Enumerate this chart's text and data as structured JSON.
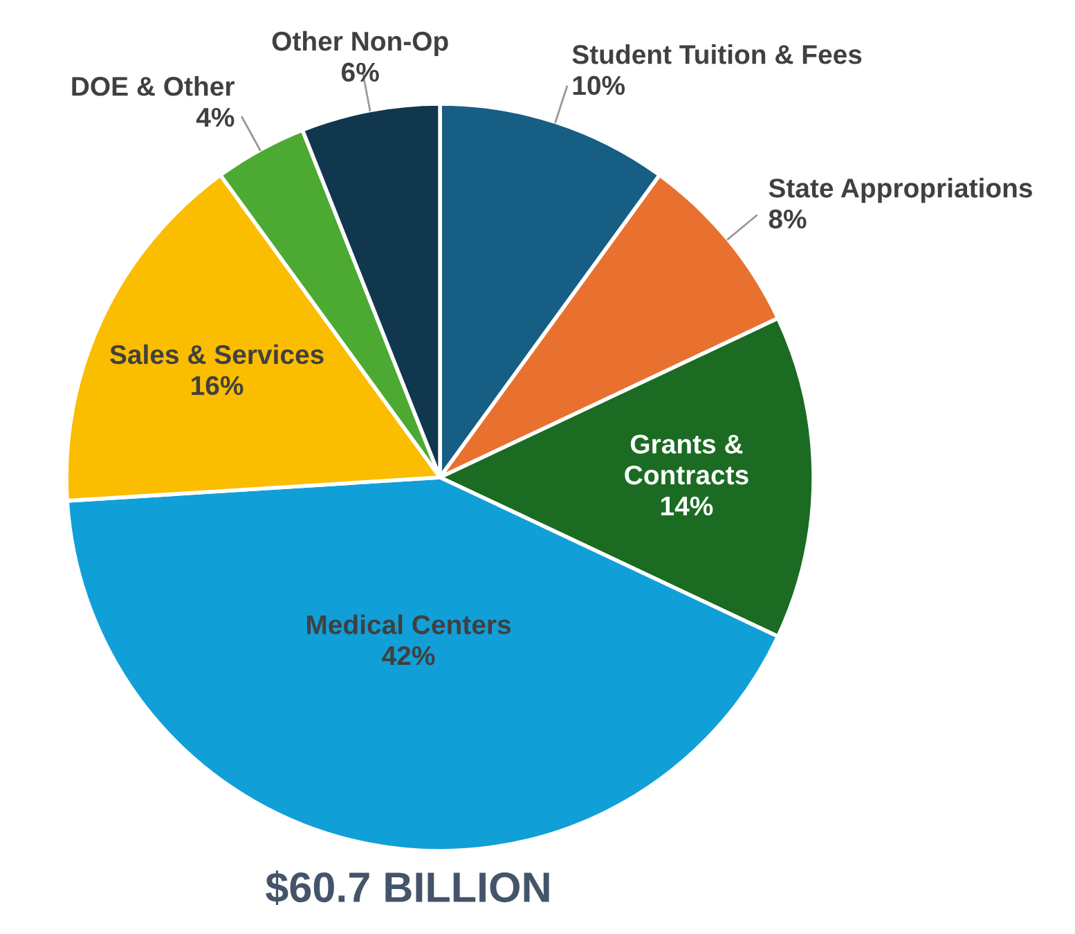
{
  "chart_data": {
    "type": "pie",
    "title": "$60.7 BILLION",
    "categories": [
      "Student Tuition & Fees",
      "State Appropriations",
      "Grants &\nContracts",
      "Medical Centers",
      "Sales & Services",
      "DOE & Other",
      "Other Non-Op"
    ],
    "values": [
      10,
      8,
      14,
      42,
      16,
      4,
      6
    ],
    "value_labels": [
      "10%",
      "8%",
      "14%",
      "42%",
      "16%",
      "4%",
      "6%"
    ],
    "colors": [
      "#175e84",
      "#e8712f",
      "#1b6b23",
      "#119fd8",
      "#fbbd00",
      "#4caa32",
      "#11374f"
    ]
  }
}
